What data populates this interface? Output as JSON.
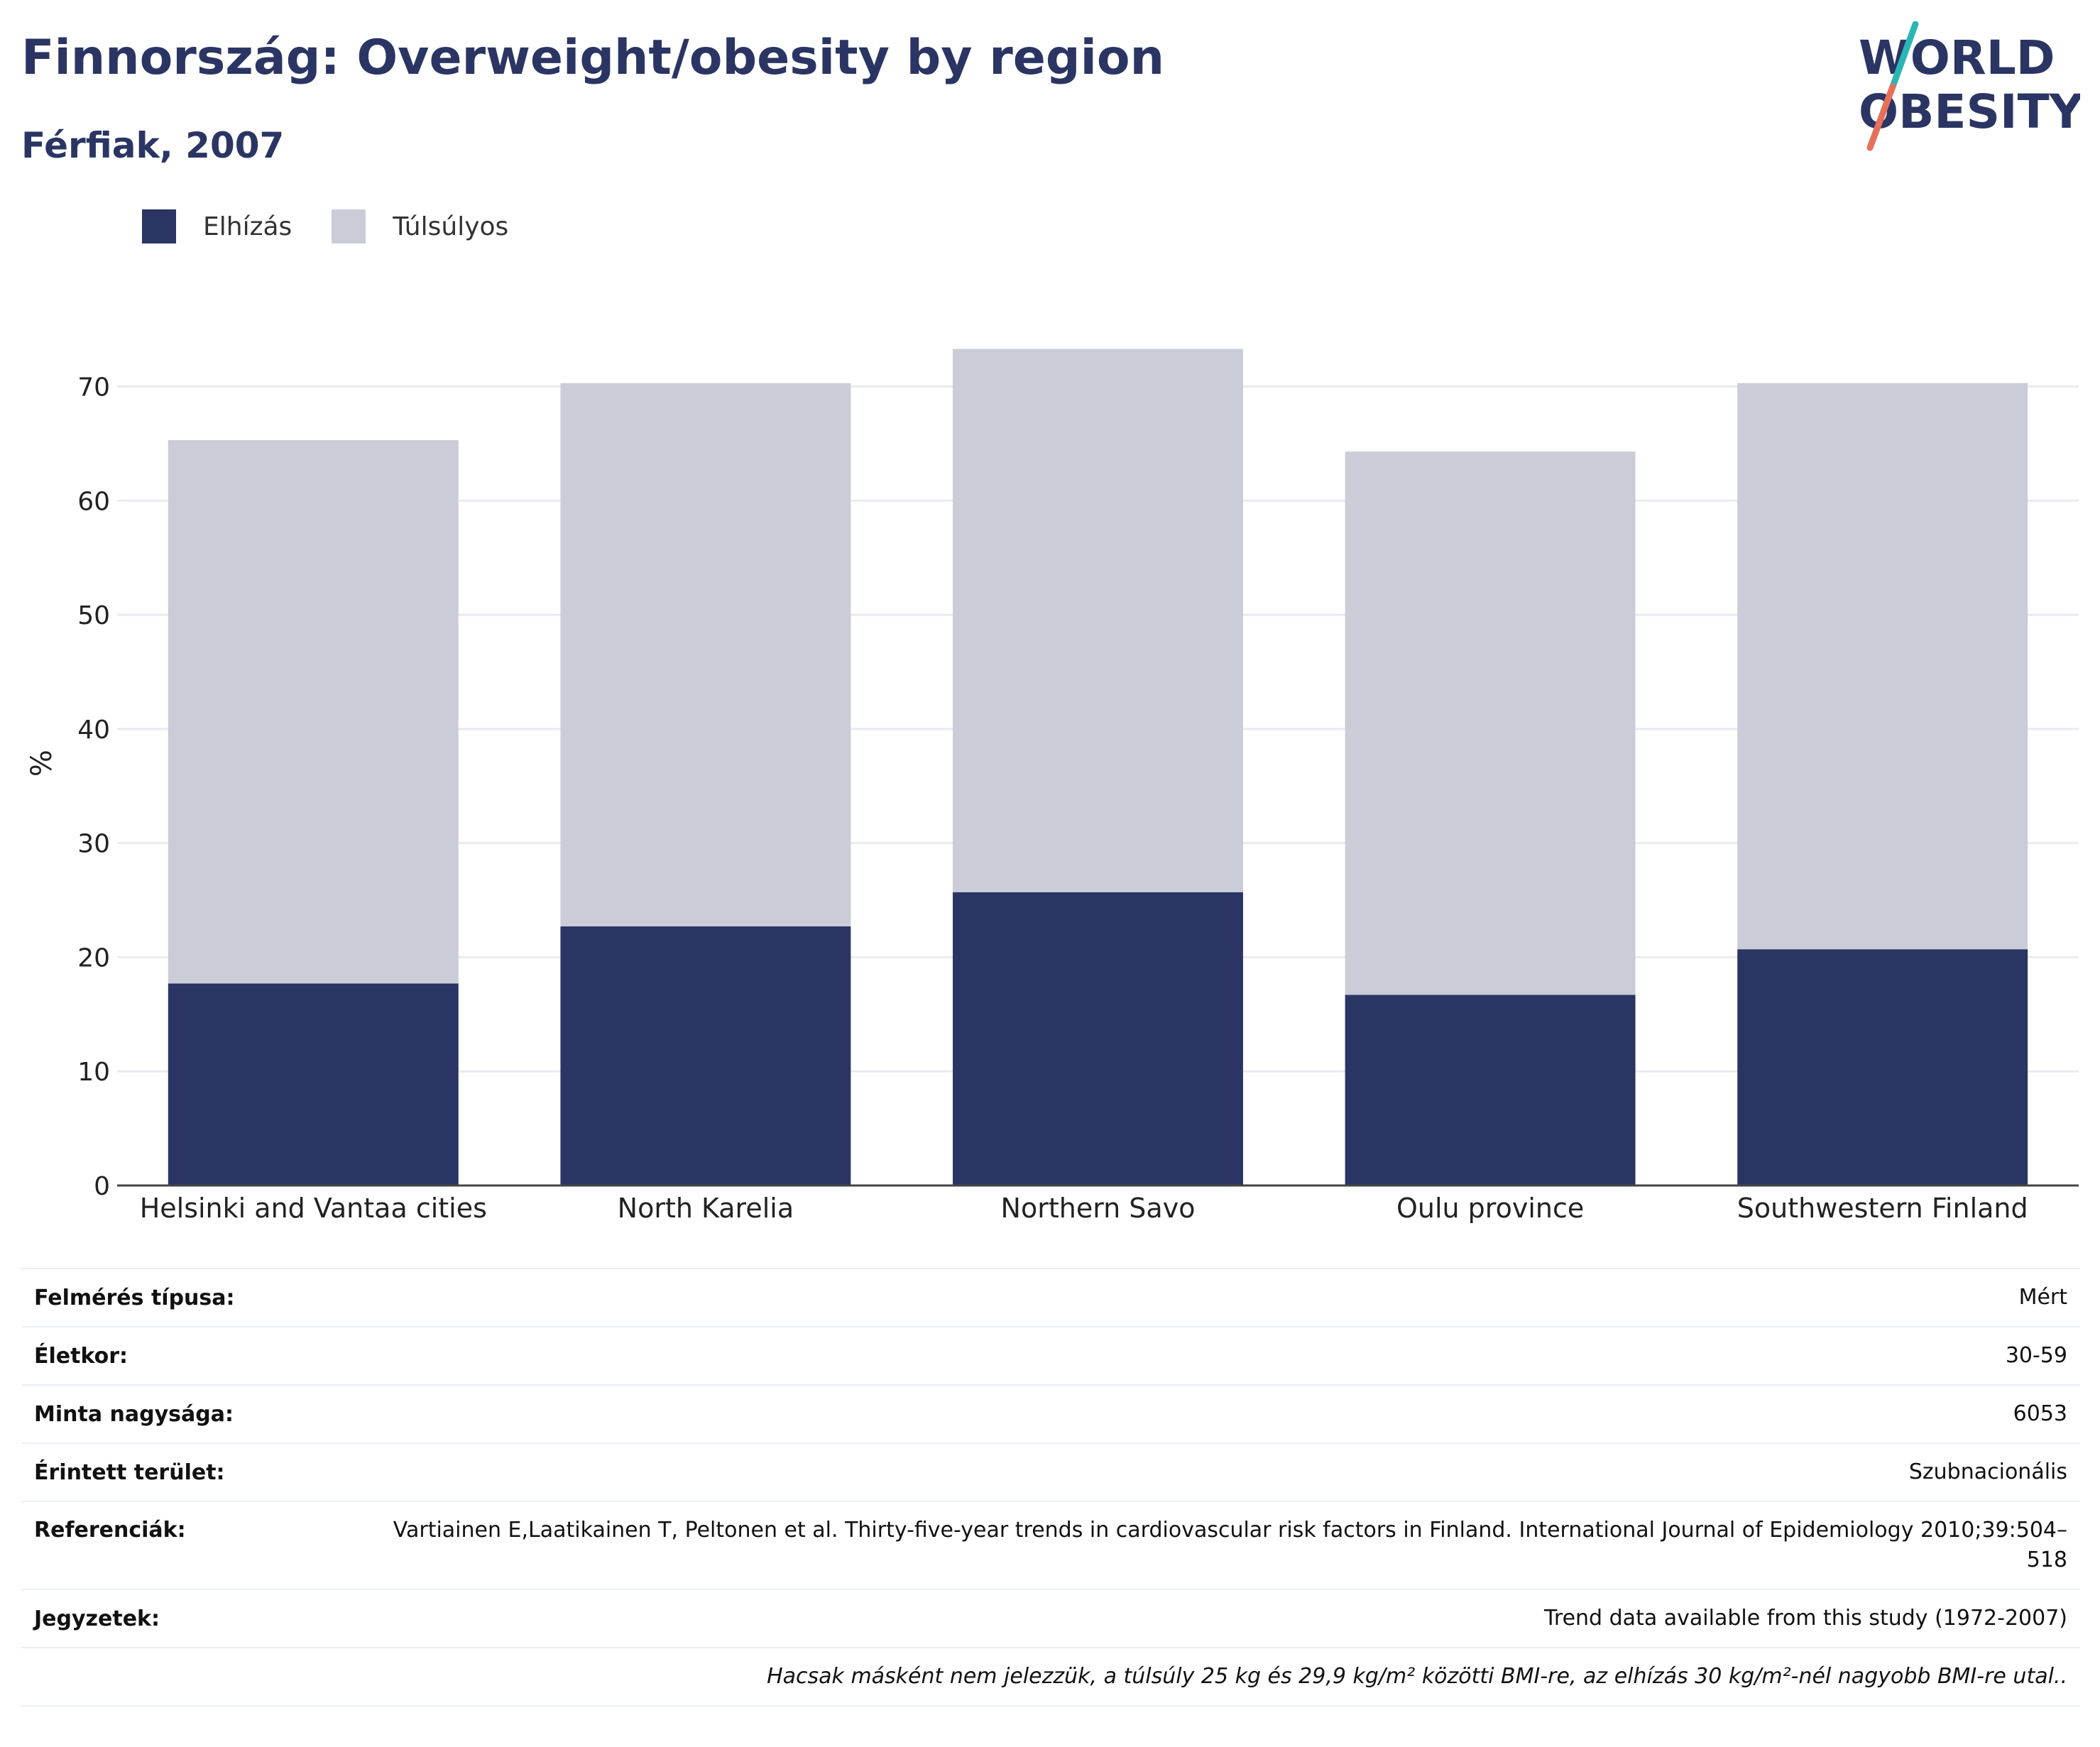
{
  "header": {
    "title": "Finnország: Overweight/obesity by region",
    "subtitle": "Férfiak, 2007"
  },
  "logo": {
    "line1": "WORLD",
    "line2": "OBESITY"
  },
  "colors": {
    "obesity": "#2a3563",
    "overweight": "#cacdd8",
    "logo_teal": "#2ab7b4",
    "logo_coral": "#e6705a"
  },
  "chart_data": {
    "type": "bar",
    "stacked": true,
    "categories": [
      "Helsinki and Vantaa cities",
      "North Karelia",
      "Northern Savo",
      "Oulu province",
      "Southwestern Finland"
    ],
    "series": [
      {
        "name": "Elhízás",
        "values": [
          17.7,
          22.7,
          25.7,
          16.7,
          20.7
        ]
      },
      {
        "name": "Túlsúlyos",
        "values": [
          47.6,
          47.6,
          47.6,
          47.6,
          49.6
        ]
      }
    ],
    "ylabel": "%",
    "ylim": [
      0,
      75
    ],
    "yticks": [
      0,
      10,
      20,
      30,
      40,
      50,
      60,
      70
    ],
    "grid": true,
    "legend": "top-left"
  },
  "meta": {
    "rows": [
      {
        "key": "Felmérés típusa:",
        "value": "Mért"
      },
      {
        "key": "Életkor:",
        "value": "30-59"
      },
      {
        "key": "Minta nagysága:",
        "value": "6053"
      },
      {
        "key": "Érintett terület:",
        "value": "Szubnacionális"
      },
      {
        "key": "Referenciák:",
        "value": "Vartiainen E,Laatikainen T, Peltonen et al. Thirty-five-year trends in cardiovascular risk factors in Finland. International Journal of Epidemiology 2010;39:504–518"
      },
      {
        "key": "Jegyzetek:",
        "value": "Trend data available from this study (1972-2007)"
      }
    ],
    "note": "Hacsak másként nem jelezzük, a túlsúly 25 kg és 29,9 kg/m² közötti BMI-re, az elhízás 30 kg/m²-nél nagyobb BMI-re utal.."
  }
}
